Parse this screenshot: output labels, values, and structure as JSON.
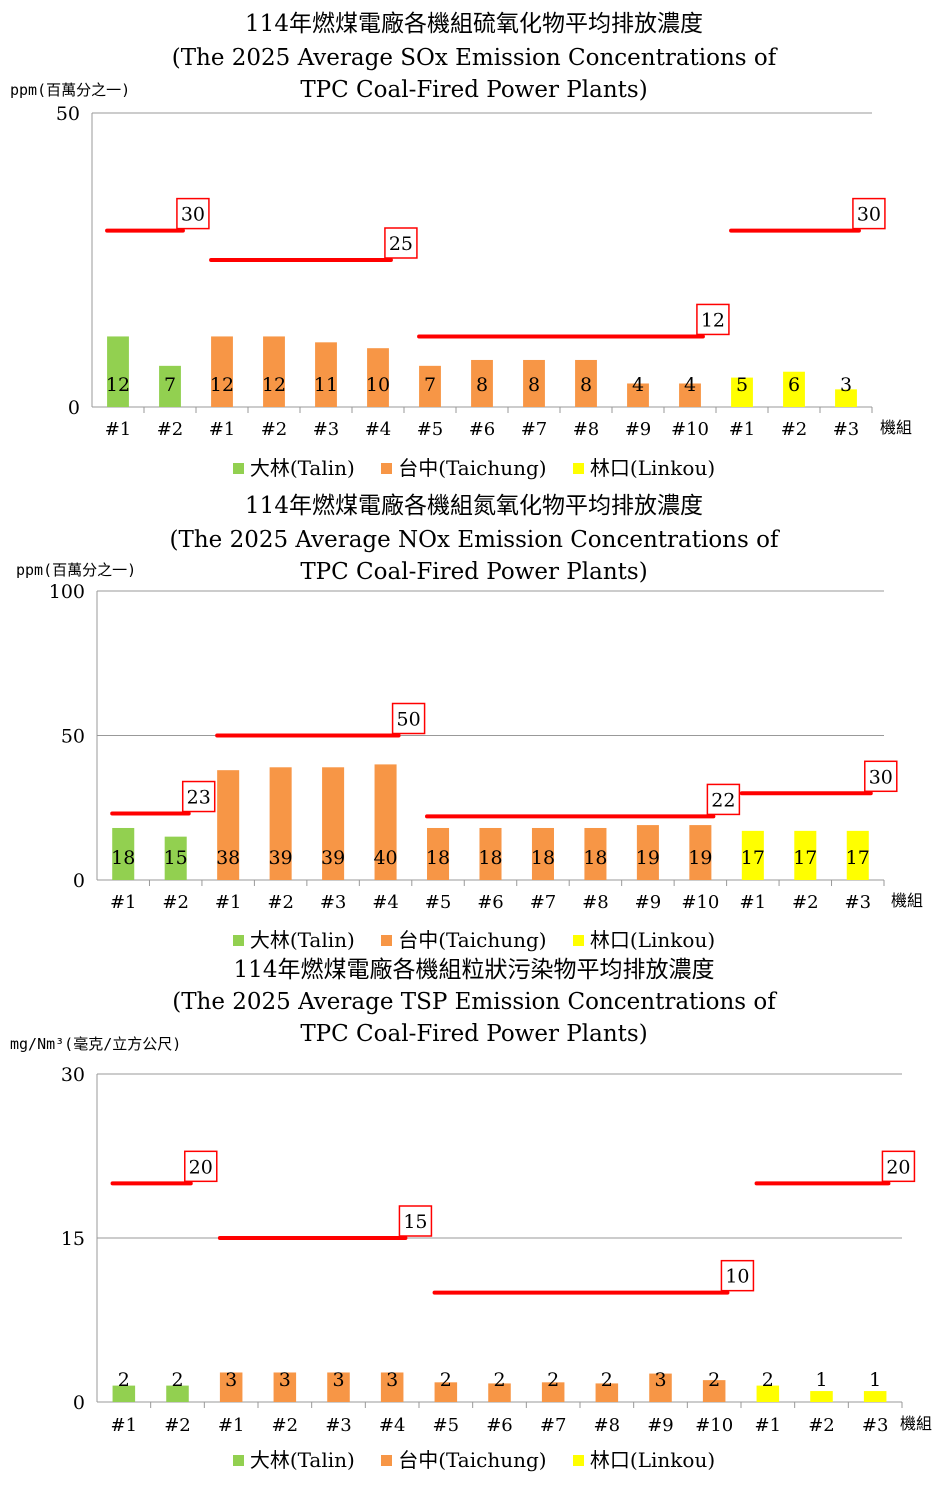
{
  "chart_data": [
    {
      "type": "bar",
      "title": "114年燃煤電廠各機組硫氧化物平均排放濃度",
      "subtitle_lines": [
        "(The 2025 Average SOx Emission Concentrations of",
        "TPC Coal-Fired Power Plants)"
      ],
      "ylabel": "ppm(百萬分之一)",
      "xlabel": "機組",
      "ylim": [
        0,
        50
      ],
      "yticks": [
        "0",
        "50"
      ],
      "categories": [
        "#1",
        "#2",
        "#1",
        "#2",
        "#3",
        "#4",
        "#5",
        "#6",
        "#7",
        "#8",
        "#9",
        "#10",
        "#1",
        "#2",
        "#3"
      ],
      "values": [
        12,
        7,
        12,
        12,
        11,
        10,
        7,
        8,
        8,
        8,
        4,
        4,
        5,
        6,
        3
      ],
      "value_labels": [
        "12",
        "7",
        "12",
        "12",
        "11",
        "10",
        "7",
        "8",
        "8",
        "8",
        "4",
        "4",
        "5",
        "6",
        "3"
      ],
      "series": [
        {
          "name": "大林(Talin)",
          "color": "#92d050",
          "range": [
            0,
            2
          ]
        },
        {
          "name": "台中(Taichung)",
          "color": "#f79646",
          "range": [
            2,
            12
          ]
        },
        {
          "name": "林口(Linkou)",
          "color": "#ffff00",
          "range": [
            12,
            15
          ]
        }
      ],
      "limits": [
        {
          "value": 30,
          "label": "30",
          "from": 0,
          "to": 2
        },
        {
          "value": 25,
          "label": "25",
          "from": 2,
          "to": 6
        },
        {
          "value": 12,
          "label": "12",
          "from": 6,
          "to": 12
        },
        {
          "value": 30,
          "label": "30",
          "from": 12,
          "to": 15
        }
      ],
      "grid": false
    },
    {
      "type": "bar",
      "title": "114年燃煤電廠各機組氮氧化物平均排放濃度",
      "subtitle_lines": [
        "(The 2025 Average NOx Emission Concentrations of",
        "TPC Coal-Fired Power Plants)"
      ],
      "ylabel": "ppm(百萬分之一)",
      "xlabel": "機組",
      "ylim": [
        0,
        100
      ],
      "yticks": [
        "0",
        "50",
        "100"
      ],
      "categories": [
        "#1",
        "#2",
        "#1",
        "#2",
        "#3",
        "#4",
        "#5",
        "#6",
        "#7",
        "#8",
        "#9",
        "#10",
        "#1",
        "#2",
        "#3"
      ],
      "values": [
        18,
        15,
        38,
        39,
        39,
        40,
        18,
        18,
        18,
        18,
        19,
        19,
        17,
        17,
        17
      ],
      "value_labels": [
        "18",
        "15",
        "38",
        "39",
        "39",
        "40",
        "18",
        "18",
        "18",
        "18",
        "19",
        "19",
        "17",
        "17",
        "17"
      ],
      "series": [
        {
          "name": "大林(Talin)",
          "color": "#92d050",
          "range": [
            0,
            2
          ]
        },
        {
          "name": "台中(Taichung)",
          "color": "#f79646",
          "range": [
            2,
            12
          ]
        },
        {
          "name": "林口(Linkou)",
          "color": "#ffff00",
          "range": [
            12,
            15
          ]
        }
      ],
      "limits": [
        {
          "value": 23,
          "label": "23",
          "from": 0,
          "to": 2
        },
        {
          "value": 50,
          "label": "50",
          "from": 2,
          "to": 6
        },
        {
          "value": 22,
          "label": "22",
          "from": 6,
          "to": 12
        },
        {
          "value": 30,
          "label": "30",
          "from": 12,
          "to": 15
        }
      ],
      "grid": true
    },
    {
      "type": "bar",
      "title": "114年燃煤電廠各機組粒狀污染物平均排放濃度",
      "subtitle_lines": [
        "(The 2025 Average TSP Emission Concentrations of",
        "TPC Coal-Fired Power Plants)"
      ],
      "ylabel": "mg/Nm³(毫克/立方公尺)",
      "xlabel": "機組",
      "ylim": [
        0,
        30
      ],
      "yticks": [
        "0",
        "15",
        "30"
      ],
      "categories": [
        "#1",
        "#2",
        "#1",
        "#2",
        "#3",
        "#4",
        "#5",
        "#6",
        "#7",
        "#8",
        "#9",
        "#10",
        "#1",
        "#2",
        "#3"
      ],
      "values": [
        1.5,
        1.5,
        2.7,
        2.7,
        2.7,
        2.7,
        1.8,
        1.7,
        1.8,
        1.7,
        2.6,
        2.0,
        1.5,
        1.0,
        1.0
      ],
      "value_labels": [
        "2",
        "2",
        "3",
        "3",
        "3",
        "3",
        "2",
        "2",
        "2",
        "2",
        "3",
        "2",
        "2",
        "1",
        "1"
      ],
      "series": [
        {
          "name": "大林(Talin)",
          "color": "#92d050",
          "range": [
            0,
            2
          ]
        },
        {
          "name": "台中(Taichung)",
          "color": "#f79646",
          "range": [
            2,
            12
          ]
        },
        {
          "name": "林口(Linkou)",
          "color": "#ffff00",
          "range": [
            12,
            15
          ]
        }
      ],
      "limits": [
        {
          "value": 20,
          "label": "20",
          "from": 0,
          "to": 2
        },
        {
          "value": 15,
          "label": "15",
          "from": 2,
          "to": 6
        },
        {
          "value": 10,
          "label": "10",
          "from": 6,
          "to": 12
        },
        {
          "value": 20,
          "label": "20",
          "from": 12,
          "to": 15
        }
      ],
      "grid": true
    }
  ],
  "colors": {
    "limit_line": "#ff0000",
    "axis": "#999999",
    "grid": "#999999"
  }
}
